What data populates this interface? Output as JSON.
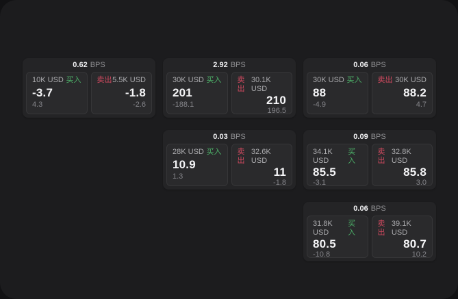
{
  "labels": {
    "buy": "买入",
    "sell": "卖出",
    "bps_unit": "BPS"
  },
  "colors": {
    "buy": "#4caf68",
    "sell": "#d0495f",
    "panel_bg": "#1c1c1e",
    "card_bg": "#242426",
    "subcard_bg": "#2a2a2c"
  },
  "cards": [
    {
      "bps": "0.62",
      "buy": {
        "amount": "10K USD",
        "value": "-3.7",
        "delta": "4.3"
      },
      "sell": {
        "amount": "5.5K USD",
        "value": "-1.8",
        "delta": "-2.6"
      }
    },
    {
      "bps": "2.92",
      "buy": {
        "amount": "30K USD",
        "value": "201",
        "delta": "-188.1"
      },
      "sell": {
        "amount": "30.1K USD",
        "value": "210",
        "delta": "196.5"
      }
    },
    {
      "bps": "0.06",
      "buy": {
        "amount": "30K USD",
        "value": "88",
        "delta": "-4.9"
      },
      "sell": {
        "amount": "30K USD",
        "value": "88.2",
        "delta": "4.7"
      }
    },
    {
      "bps": "0.03",
      "buy": {
        "amount": "28K USD",
        "value": "10.9",
        "delta": "1.3"
      },
      "sell": {
        "amount": "32.6K USD",
        "value": "11",
        "delta": "-1.8"
      }
    },
    {
      "bps": "0.09",
      "buy": {
        "amount": "34.1K USD",
        "value": "85.5",
        "delta": "-3.1"
      },
      "sell": {
        "amount": "32.8K USD",
        "value": "85.8",
        "delta": "3.0"
      }
    },
    {
      "bps": "0.06",
      "buy": {
        "amount": "31.8K USD",
        "value": "80.5",
        "delta": "-10.8"
      },
      "sell": {
        "amount": "39.1K USD",
        "value": "80.7",
        "delta": "10.2"
      }
    }
  ]
}
